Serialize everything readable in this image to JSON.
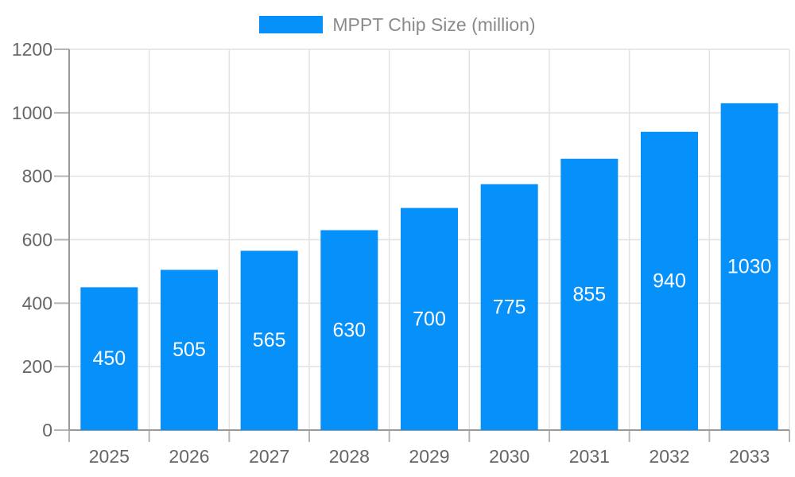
{
  "chart_data": {
    "type": "bar",
    "title": "",
    "series_name": "MPPT Chip Size (million)",
    "categories": [
      "2025",
      "2026",
      "2027",
      "2028",
      "2029",
      "2030",
      "2031",
      "2032",
      "2033"
    ],
    "values": [
      450,
      505,
      565,
      630,
      700,
      775,
      855,
      940,
      1030
    ],
    "xlabel": "",
    "ylabel": "",
    "ylim": [
      0,
      1200
    ],
    "ytick_interval": 200,
    "ytick_labels": [
      "0",
      "200",
      "400",
      "600",
      "800",
      "1000",
      "1200"
    ],
    "grid": "horizontal-and-vertical",
    "legend_position": "top-center",
    "value_label_position": "inside-center",
    "colors": {
      "bar": "#0590fa",
      "value_label": "#ffffff",
      "axis_line": "#999999",
      "tick_mark": "#b5b5b5",
      "grid_line": "#e2e2e2",
      "tick_label": "#666666",
      "legend_text": "#8a8a8a",
      "background": "#ffffff"
    }
  }
}
